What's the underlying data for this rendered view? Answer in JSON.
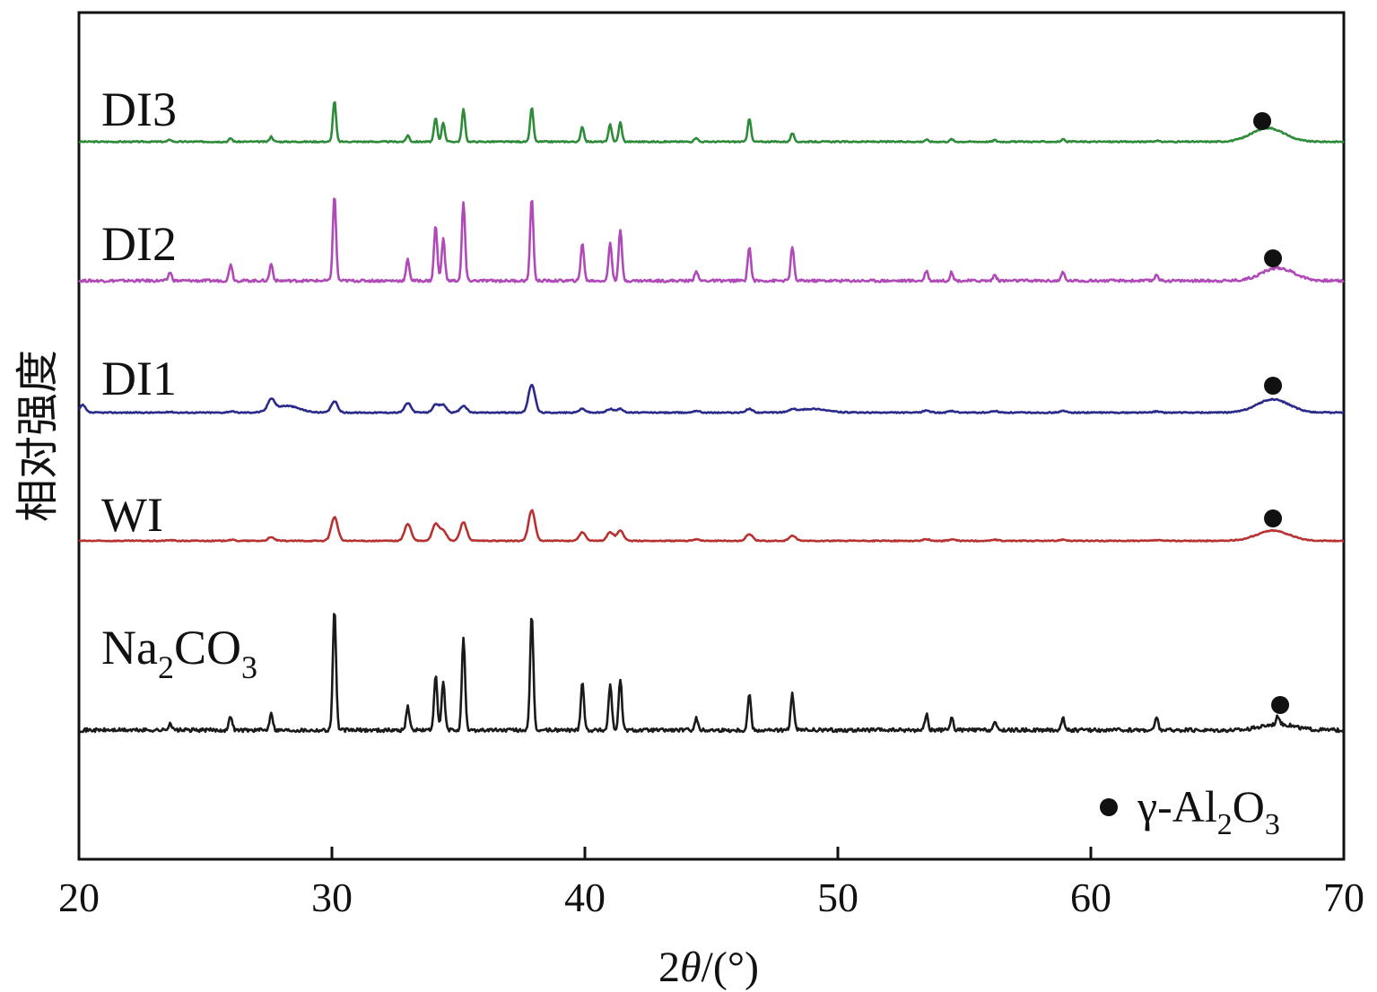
{
  "chart_data": {
    "type": "line",
    "xlabel_prefix": "2",
    "xlabel_var": "θ",
    "xlabel_suffix": "/(°)",
    "ylabel": "相对强度",
    "xlim": [
      20,
      70
    ],
    "xticks": [
      "20",
      "30",
      "40",
      "50",
      "60",
      "70"
    ],
    "grid": false,
    "legend_position": "bottom-right",
    "legend": {
      "marker": "filled-circle",
      "prefix": "γ-Al",
      "sub1": "2",
      "mid": "O",
      "sub2": "3"
    },
    "peak_positions": [
      23.6,
      26.0,
      27.6,
      30.1,
      33.0,
      34.1,
      34.4,
      35.2,
      37.9,
      39.9,
      41.0,
      41.4,
      44.4,
      46.5,
      48.2,
      53.5,
      54.5,
      56.2,
      58.9,
      62.6,
      67.4
    ],
    "marker_x": 67.2,
    "series": [
      {
        "name": "DI3",
        "color": "#2e8b3a",
        "label": "DI3",
        "broad_hump": {
          "center": 67.0,
          "height": 0.32
        },
        "relative_peaks": [
          0.05,
          0.08,
          0.12,
          0.95,
          0.15,
          0.55,
          0.45,
          0.75,
          0.8,
          0.35,
          0.4,
          0.45,
          0.1,
          0.55,
          0.2,
          0.05,
          0.06,
          0.04,
          0.05,
          0.03,
          0.0
        ]
      },
      {
        "name": "DI2",
        "color": "#b04ab8",
        "label": "DI2",
        "broad_hump": {
          "center": 67.4,
          "height": 0.15
        },
        "relative_peaks": [
          0.1,
          0.2,
          0.2,
          1.0,
          0.25,
          0.65,
          0.5,
          0.92,
          0.98,
          0.45,
          0.45,
          0.6,
          0.12,
          0.4,
          0.4,
          0.12,
          0.1,
          0.07,
          0.1,
          0.08,
          0.0
        ]
      },
      {
        "name": "DI1",
        "color": "#2a2a8a",
        "label": "DI1",
        "broad_hump": {
          "center": 67.2,
          "height": 0.35
        },
        "relative_peaks": [
          0.02,
          0.03,
          0.3,
          0.3,
          0.25,
          0.2,
          0.2,
          0.18,
          0.75,
          0.1,
          0.1,
          0.1,
          0.05,
          0.1,
          0.06,
          0.06,
          0.04,
          0.04,
          0.04,
          0.03,
          0.0
        ]
      },
      {
        "name": "WI",
        "color": "#b83232",
        "label": "WI",
        "broad_hump": {
          "center": 67.2,
          "height": 0.3
        },
        "relative_peaks": [
          0.02,
          0.03,
          0.1,
          0.7,
          0.5,
          0.5,
          0.3,
          0.55,
          0.9,
          0.25,
          0.25,
          0.3,
          0.05,
          0.2,
          0.15,
          0.05,
          0.04,
          0.03,
          0.04,
          0.02,
          0.0
        ]
      },
      {
        "name": "Na2CO3",
        "color": "#1a1a1a",
        "label_main": "Na",
        "label_sub1": "2",
        "label_mid": "CO",
        "label_sub2": "3",
        "broad_hump": {
          "center": 67.4,
          "height": 0.05
        },
        "relative_peaks": [
          0.06,
          0.12,
          0.15,
          1.0,
          0.2,
          0.45,
          0.4,
          0.75,
          0.95,
          0.4,
          0.38,
          0.42,
          0.1,
          0.3,
          0.3,
          0.13,
          0.1,
          0.06,
          0.1,
          0.1,
          0.07
        ]
      }
    ]
  }
}
